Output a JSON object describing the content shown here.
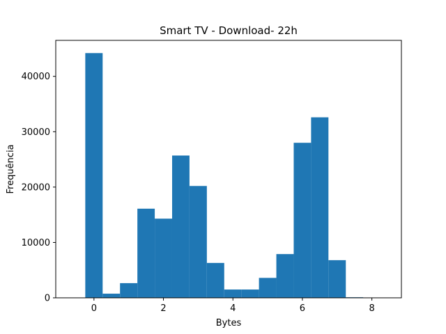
{
  "chart_data": {
    "type": "bar",
    "histogram": true,
    "title": "Smart TV - Download- 22h",
    "xlabel": "Bytes",
    "ylabel": "Frequência",
    "xlim": [
      -1.1,
      8.85
    ],
    "ylim": [
      0,
      46500
    ],
    "xticks": [
      0,
      2,
      4,
      6,
      8
    ],
    "yticks": [
      0,
      10000,
      20000,
      30000,
      40000
    ],
    "bin_edges": [
      -0.25,
      0.25,
      0.75,
      1.25,
      1.75,
      2.25,
      2.75,
      3.25,
      3.75,
      4.25,
      4.75,
      5.25,
      5.75,
      6.25,
      6.75,
      7.25,
      7.75,
      8.25
    ],
    "values": [
      44200,
      750,
      2650,
      16100,
      14300,
      25700,
      20200,
      6300,
      1500,
      1500,
      3600,
      7900,
      28000,
      32600,
      6800,
      100,
      0
    ],
    "color": "#1f77b4",
    "grid": false,
    "legend": "none"
  }
}
